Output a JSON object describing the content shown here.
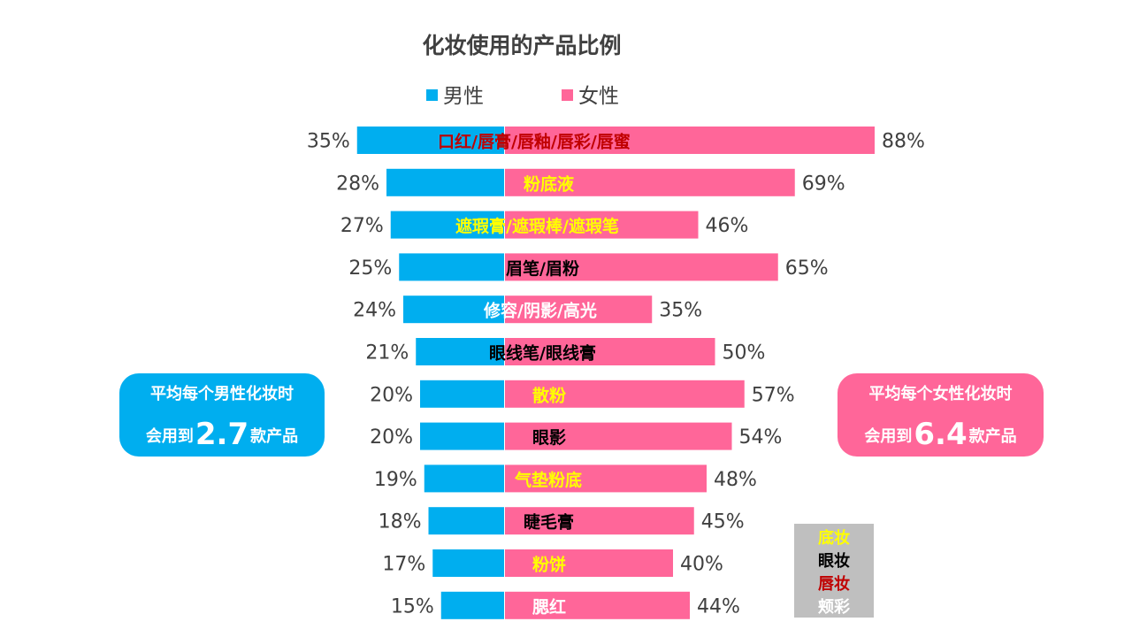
{
  "chart_data": {
    "type": "bar",
    "orientation": "horizontal-diverging",
    "title": "化妆使用的产品比例",
    "unit": "%",
    "legend": [
      {
        "name": "男性",
        "color": "#00AEEF"
      },
      {
        "name": "女性",
        "color": "#FF6699"
      }
    ],
    "categories": [
      "口红/唇膏/唇釉/唇彩/唇蜜",
      "粉底液",
      "遮瑕膏/遮瑕棒/遮瑕笔",
      "眉笔/眉粉",
      "修容/阴影/高光",
      "眼线笔/眼线膏",
      "散粉",
      "眼影",
      "气垫粉底",
      "睫毛膏",
      "粉饼",
      "腮红"
    ],
    "category_groups": [
      "唇妆",
      "底妆",
      "底妆",
      "眼妆",
      "颊彩",
      "眼妆",
      "底妆",
      "眼妆",
      "底妆",
      "眼妆",
      "底妆",
      "颊彩"
    ],
    "series": [
      {
        "name": "男性",
        "values": [
          35,
          28,
          27,
          25,
          24,
          21,
          20,
          20,
          19,
          18,
          17,
          15
        ]
      },
      {
        "name": "女性",
        "values": [
          88,
          69,
          46,
          65,
          35,
          50,
          57,
          54,
          48,
          45,
          40,
          44
        ]
      }
    ],
    "xlim": [
      0,
      100
    ]
  },
  "colors": {
    "male": "#00AEEF",
    "female": "#FF6699",
    "group": {
      "底妆": "#FFFF00",
      "眼妆": "#000000",
      "唇妆": "#C00000",
      "颊彩": "#FFFFFF"
    }
  },
  "callouts": {
    "male": {
      "line1": "平均每个男性化妆时",
      "prefix": "会用到",
      "value": "2.7",
      "suffix": "款产品"
    },
    "female": {
      "line1": "平均每个女性化妆时",
      "prefix": "会用到",
      "value": "6.4",
      "suffix": "款产品"
    }
  },
  "key": {
    "items": [
      {
        "label": "底妆",
        "color": "#FFFF00"
      },
      {
        "label": "眼妆",
        "color": "#000000"
      },
      {
        "label": "唇妆",
        "color": "#C00000"
      },
      {
        "label": "颊彩",
        "color": "#FFFFFF"
      }
    ]
  }
}
